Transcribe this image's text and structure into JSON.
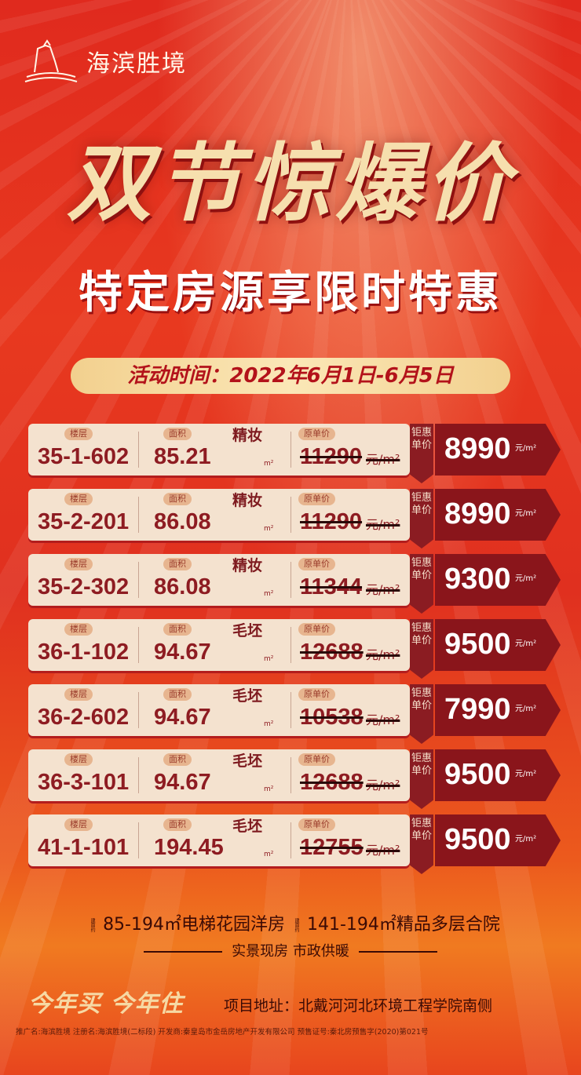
{
  "brand": {
    "name": "海滨胜境",
    "logo_icon": "building-logo-icon"
  },
  "headline": "双节惊爆价",
  "subheadline": "特定房源享限时特惠",
  "event_time": "活动时间：2022年6月1日-6月5日",
  "labels": {
    "floor": "楼层",
    "area": "面积",
    "orig_price": "原单价",
    "area_unit": "m²",
    "price_unit": "元/m²",
    "deal": "钜惠单价"
  },
  "units": [
    {
      "floor": "35-1-602",
      "area": "85.21",
      "finish": "精妆",
      "orig_price": "11290",
      "deal_price": "8990"
    },
    {
      "floor": "35-2-201",
      "area": "86.08",
      "finish": "精妆",
      "orig_price": "11290",
      "deal_price": "8990"
    },
    {
      "floor": "35-2-302",
      "area": "86.08",
      "finish": "精妆",
      "orig_price": "11344",
      "deal_price": "9300"
    },
    {
      "floor": "36-1-102",
      "area": "94.67",
      "finish": "毛坯",
      "orig_price": "12688",
      "deal_price": "9500"
    },
    {
      "floor": "36-2-602",
      "area": "94.67",
      "finish": "毛坯",
      "orig_price": "10538",
      "deal_price": "7990"
    },
    {
      "floor": "36-3-101",
      "area": "94.67",
      "finish": "毛坯",
      "orig_price": "12688",
      "deal_price": "9500"
    },
    {
      "floor": "41-1-101",
      "area": "194.45",
      "finish": "毛坯",
      "orig_price": "12755",
      "deal_price": "9500"
    }
  ],
  "features": {
    "tag": "建面约",
    "a": "85-194㎡电梯花园洋房",
    "b": "141-194㎡精品多层合院",
    "c": "实景现房 市政供暖"
  },
  "slogan": "今年买 今年住",
  "address": "项目地址：北戴河河北环境工程学院南侧",
  "legal": "推广名:海滨胜境 注册名:海滨胜境(二标段) 开发商:秦皇岛市金岳房地产开发有限公司 预售证号:秦北房预售字(2020)第021号",
  "colors": {
    "bg": "#e02a1e",
    "card": "#f4e2cf",
    "deal": "#8a151b",
    "gold": "#f6dfae"
  }
}
